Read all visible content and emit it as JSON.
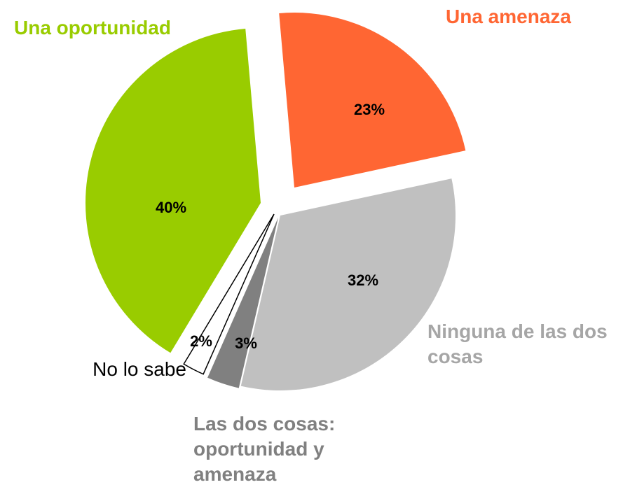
{
  "chart_data": {
    "type": "pie",
    "categories": [
      "Una amenaza",
      "Ninguna de las dos cosas",
      "Las dos cosas: oportunidad y amenaza",
      "No lo sabe",
      "Una oportunidad"
    ],
    "values": [
      23,
      32,
      3,
      2,
      40
    ],
    "value_labels": [
      "23%",
      "32%",
      "3%",
      "2%",
      "40%"
    ],
    "colors": [
      "#ff6633",
      "#c0c0c0",
      "#808080",
      "#ffffff",
      "#99cc00"
    ]
  }
}
